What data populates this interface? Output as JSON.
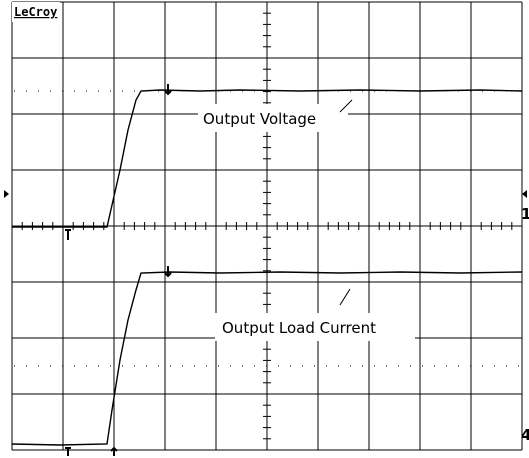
{
  "logo": "LeCroy",
  "traces": [
    {
      "label": "Output Voltage",
      "channel": "1"
    },
    {
      "label": "Output Load Current",
      "channel": "4"
    }
  ]
}
